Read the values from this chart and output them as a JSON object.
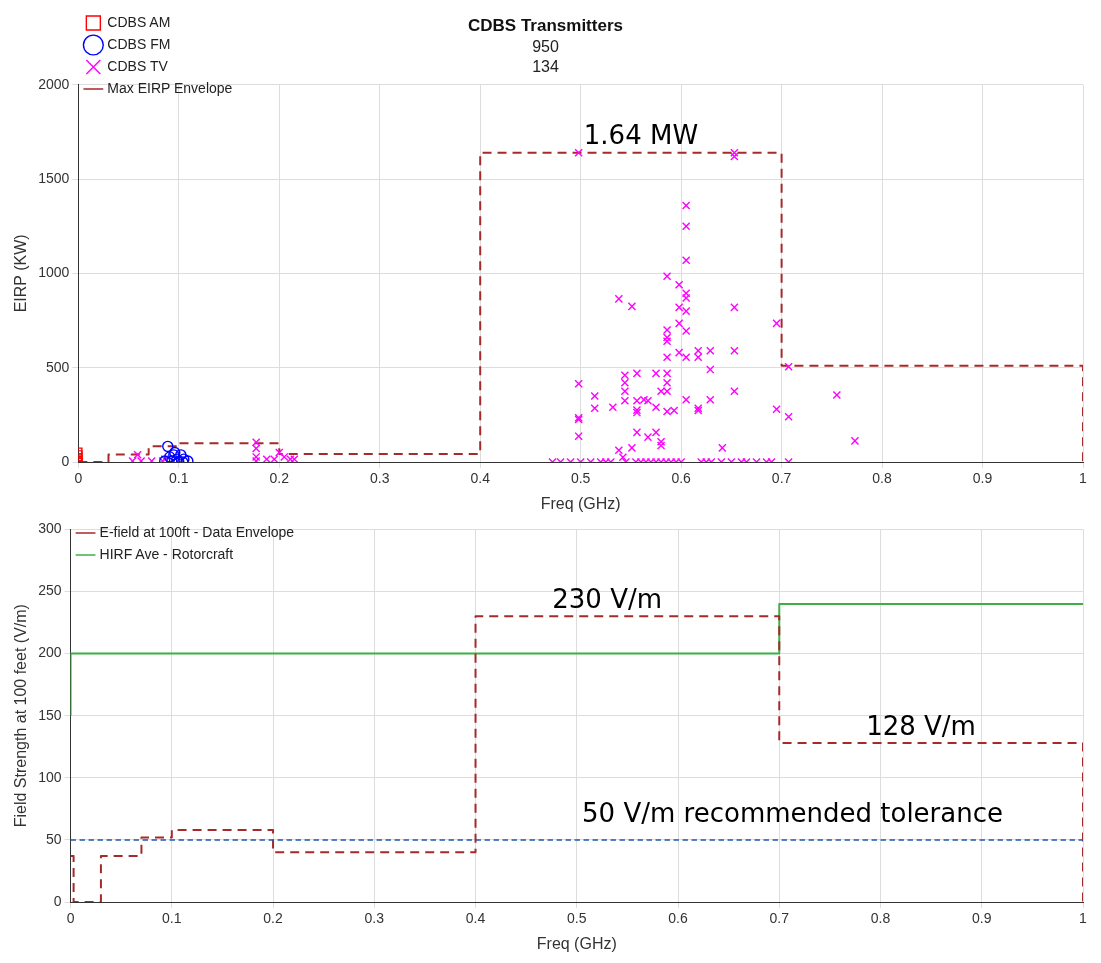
{
  "chart_data": [
    {
      "type": "scatter",
      "title": "CDBS Transmitters",
      "subtitle": "950\n134",
      "xlabel": "Freq (GHz)",
      "ylabel": "EIRP (KW)",
      "xlim": [
        0,
        1
      ],
      "xticks": [
        0,
        0.1,
        0.2,
        0.3,
        0.4,
        0.5,
        0.6,
        0.7,
        0.8,
        0.9,
        1
      ],
      "ylim": [
        0,
        2000
      ],
      "yticks": [
        0,
        500,
        1000,
        1500,
        2000
      ],
      "grid": true,
      "legend": "top left",
      "annotations": [
        {
          "text": "1.64 MW",
          "x": 0.56,
          "y": 1640
        }
      ],
      "series": [
        {
          "name": "CDBS AM",
          "color": "#ff0000",
          "marker": "square",
          "x": [
            0,
            0,
            0,
            0,
            0
          ],
          "values": [
            55,
            40,
            25,
            10,
            0
          ]
        },
        {
          "name": "CDBS FM",
          "color": "#0000ff",
          "marker": "circle",
          "x": [
            0.089,
            0.091,
            0.095,
            0.096,
            0.098,
            0.102,
            0.105,
            0.109,
            0.086,
            0.093,
            0.1,
            0.104
          ],
          "values": [
            83,
            27,
            38,
            50,
            15,
            38,
            15,
            5,
            5,
            5,
            0,
            0
          ]
        },
        {
          "name": "CDBS TV",
          "color": "#ff00ff",
          "marker": "cross",
          "x": [
            0.054,
            0.059,
            0.0625,
            0.073,
            0.084,
            0.086,
            0.177,
            0.177,
            0.177,
            0.177,
            0.1875,
            0.195,
            0.2,
            0.205,
            0.211,
            0.215,
            0.498,
            0.653,
            0.653,
            0.605,
            0.605,
            0.605,
            0.586,
            0.538,
            0.551,
            0.598,
            0.605,
            0.605,
            0.605,
            0.598,
            0.653,
            0.695,
            0.598,
            0.586,
            0.586,
            0.586,
            0.605,
            0.586,
            0.629,
            0.617,
            0.617,
            0.598,
            0.605,
            0.629,
            0.653,
            0.707,
            0.498,
            0.544,
            0.544,
            0.544,
            0.544,
            0.556,
            0.575,
            0.586,
            0.586,
            0.586,
            0.58,
            0.514,
            0.514,
            0.532,
            0.556,
            0.556,
            0.556,
            0.567,
            0.563,
            0.575,
            0.605,
            0.629,
            0.617,
            0.617,
            0.586,
            0.593,
            0.653,
            0.695,
            0.707,
            0.755,
            0.773,
            0.498,
            0.498,
            0.498,
            0.556,
            0.567,
            0.575,
            0.58,
            0.58,
            0.551,
            0.538,
            0.542,
            0.641,
            0.472,
            0.48,
            0.49,
            0.5,
            0.51,
            0.52,
            0.525,
            0.53,
            0.545,
            0.555,
            0.56,
            0.565,
            0.57,
            0.575,
            0.58,
            0.585,
            0.59,
            0.595,
            0.6,
            0.62,
            0.625,
            0.63,
            0.64,
            0.65,
            0.66,
            0.665,
            0.675,
            0.685,
            0.69,
            0.707
          ],
          "values": [
            5,
            38,
            5,
            5,
            5,
            15,
            105,
            72,
            27,
            5,
            15,
            15,
            50,
            27,
            15,
            15,
            1640,
            1640,
            1620,
            1360,
            1250,
            1070,
            985,
            865,
            825,
            940,
            895,
            870,
            800,
            820,
            820,
            735,
            735,
            700,
            660,
            640,
            695,
            555,
            590,
            590,
            555,
            580,
            555,
            490,
            590,
            505,
            415,
            460,
            420,
            375,
            325,
            470,
            470,
            470,
            420,
            375,
            375,
            350,
            285,
            290,
            325,
            275,
            262,
            325,
            330,
            290,
            330,
            330,
            285,
            273,
            268,
            273,
            375,
            280,
            240,
            355,
            112,
            235,
            225,
            137,
            157,
            132,
            157,
            107,
            87,
            75,
            62,
            25,
            75,
            0,
            0,
            0,
            0,
            0,
            0,
            0,
            0,
            0,
            0,
            0,
            0,
            0,
            0,
            0,
            0,
            0,
            0,
            0,
            0,
            0,
            0,
            0,
            0,
            0,
            0,
            0,
            0,
            0,
            0
          ]
        },
        {
          "name": "Max EIRP Envelope",
          "type": "step",
          "color": "#a52a2a",
          "marker": "none",
          "line_style": "dashed",
          "x": [
            0,
            0.03,
            0.07,
            0.1,
            0.2,
            0.4,
            0.7,
            1,
            1
          ],
          "values": [
            0,
            40,
            83,
            100,
            43,
            1640,
            510,
            510,
            0
          ]
        }
      ]
    },
    {
      "type": "step",
      "xlabel": "Freq (GHz)",
      "ylabel": "Field Strength at 100 feet (V/m)",
      "xlim": [
        0,
        1
      ],
      "xticks": [
        0,
        0.1,
        0.2,
        0.3,
        0.4,
        0.5,
        0.6,
        0.7,
        0.8,
        0.9,
        1
      ],
      "ylim": [
        0,
        300
      ],
      "yticks": [
        0,
        50,
        100,
        150,
        200,
        250,
        300
      ],
      "grid": true,
      "legend": "top left",
      "marker": "none",
      "annotations": [
        {
          "text": "230 V/m",
          "x": 0.53,
          "y": 230
        },
        {
          "text": "128 V/m",
          "x": 0.84,
          "y": 128
        }
      ],
      "ref_lines": [
        {
          "axis": "y",
          "value": 50,
          "label": "50 V/m recommended tolerance",
          "color": "#2255aa",
          "line_style": "dashed"
        }
      ],
      "series": [
        {
          "name": "E-field at 100ft - Data Envelope",
          "color": "#a52a2a",
          "line_style": "dashed",
          "x": [
            0,
            0.003,
            0.03,
            0.07,
            0.1,
            0.2,
            0.4,
            0.7,
            1,
            1
          ],
          "values": [
            37,
            0,
            37,
            52,
            58,
            40,
            230,
            128,
            128,
            0
          ]
        },
        {
          "name": "HIRF Ave - Rotorcraft",
          "color": "#3cb043",
          "line_style": "solid",
          "x": [
            0,
            0,
            0.7,
            1
          ],
          "values": [
            150,
            200,
            240,
            240
          ]
        }
      ]
    }
  ]
}
